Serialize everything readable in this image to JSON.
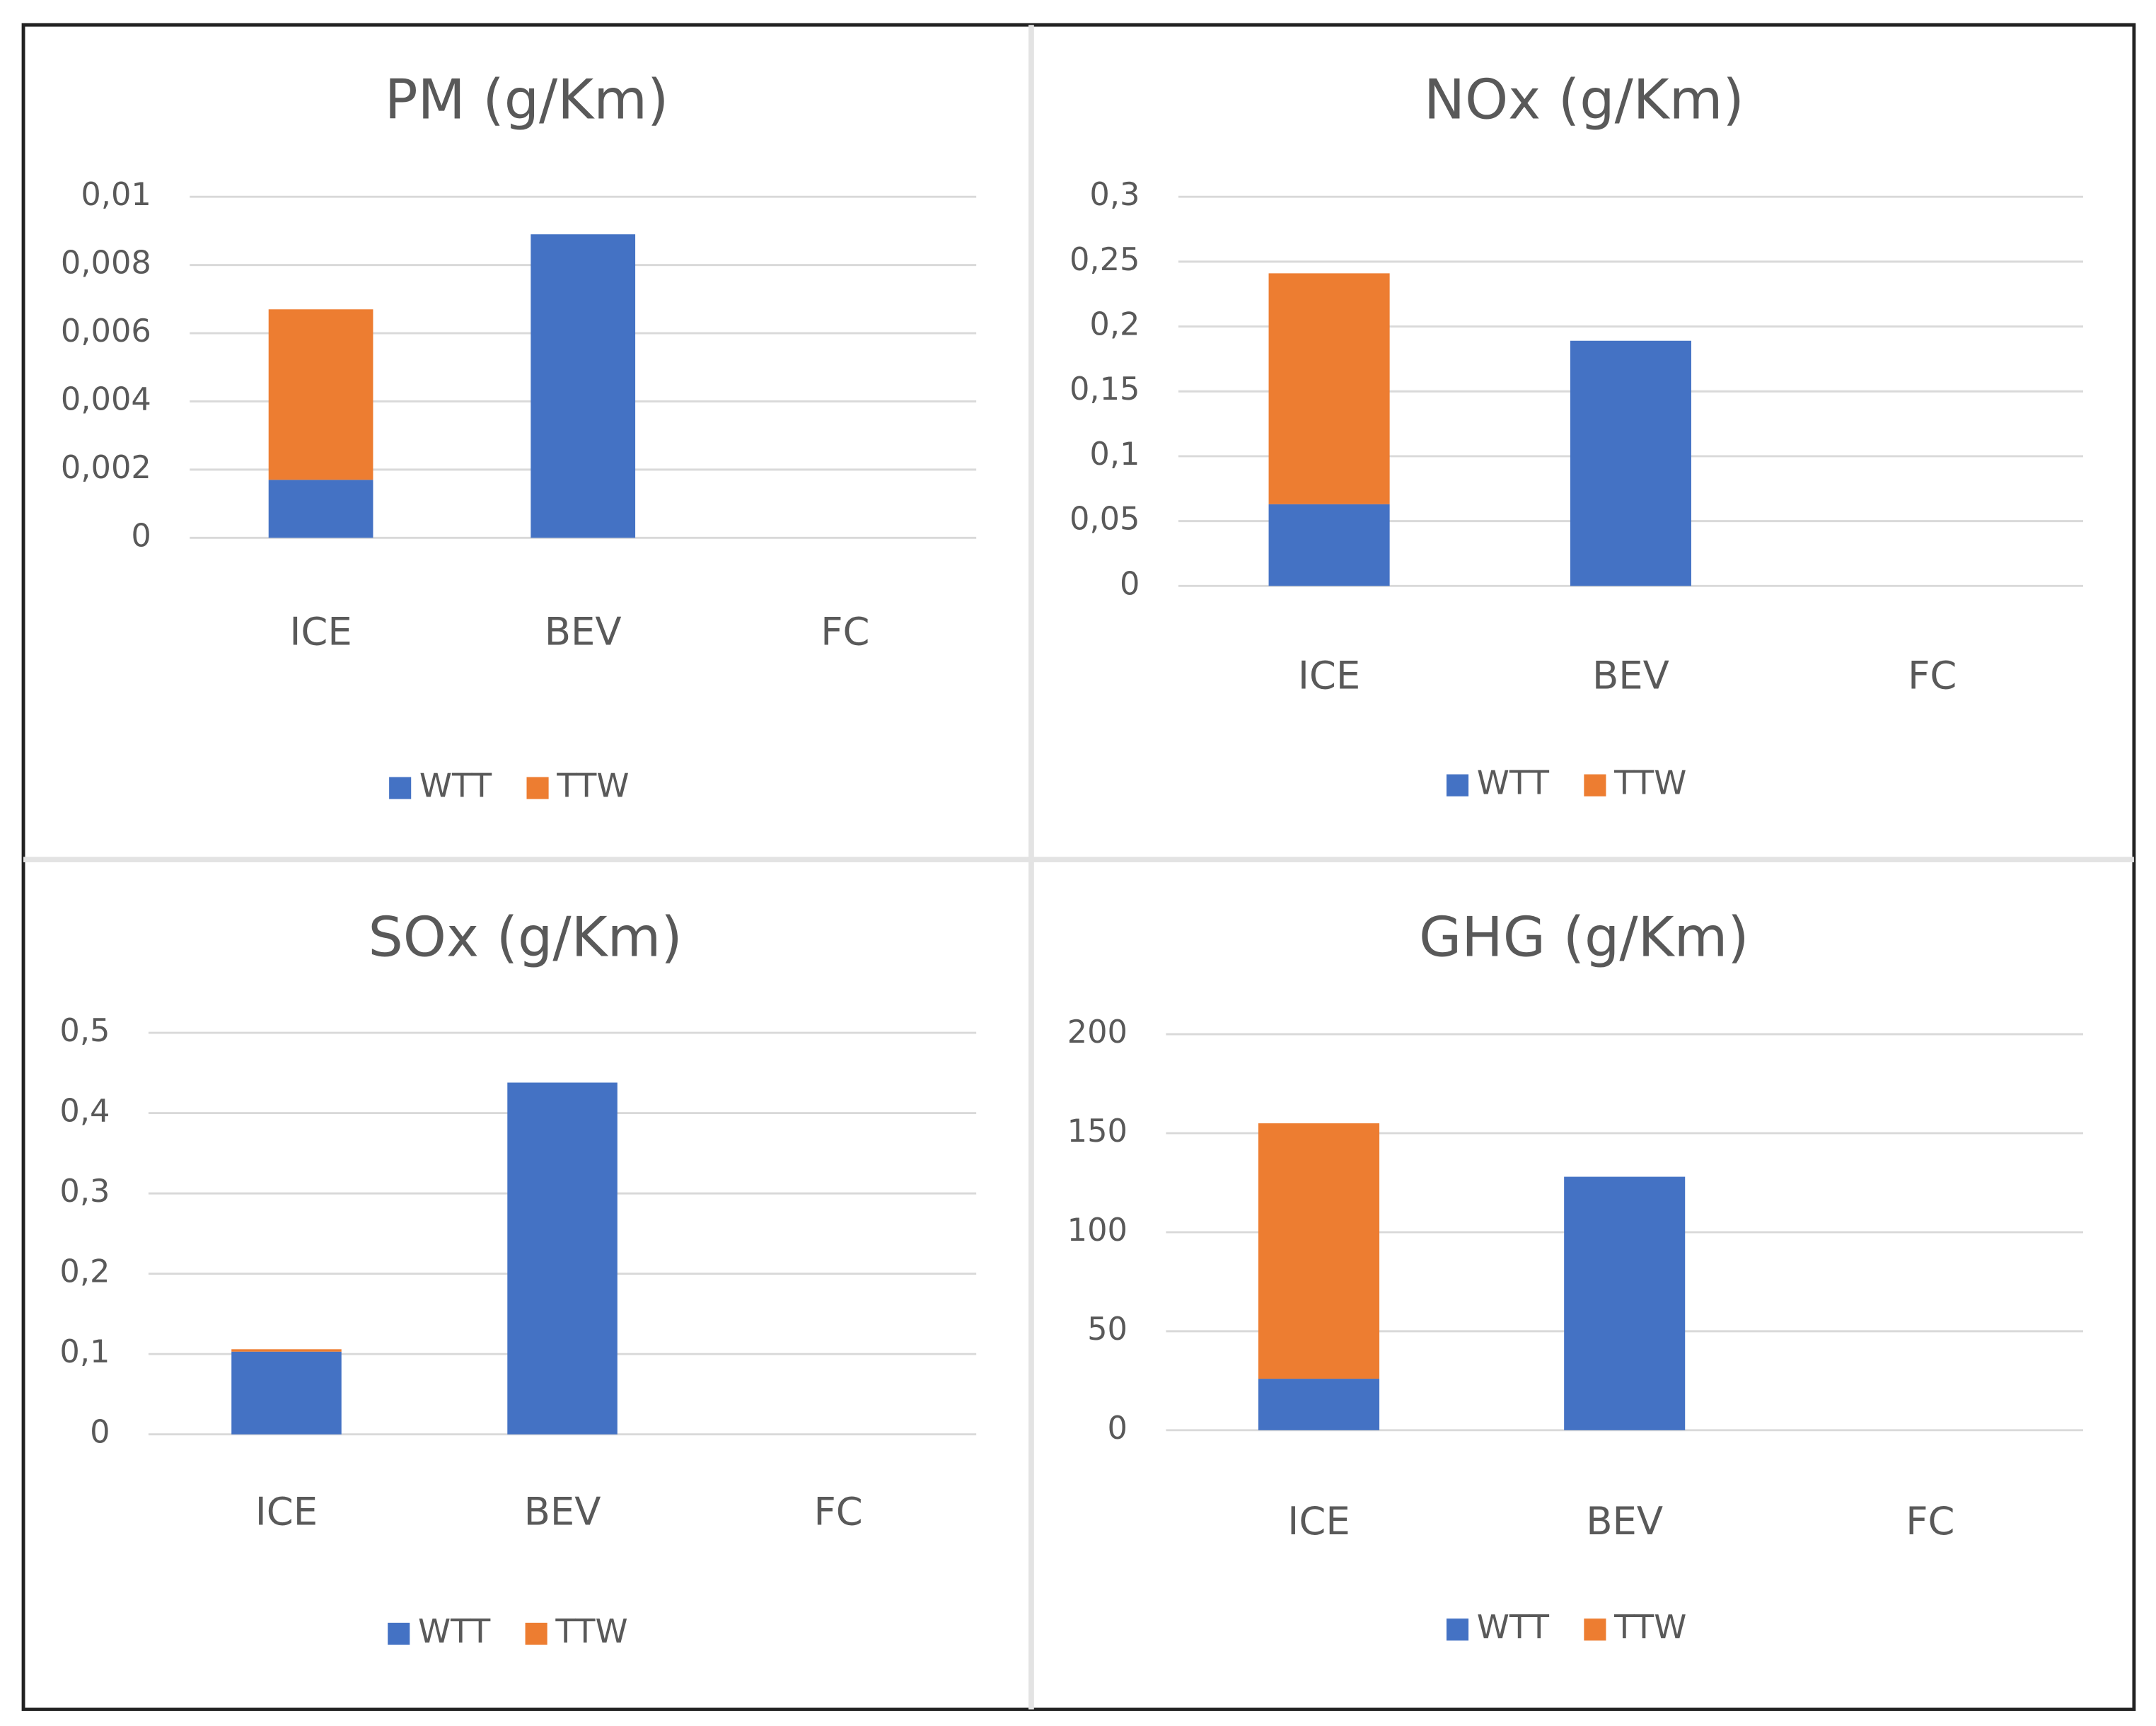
{
  "chart_data": [
    {
      "type": "stacked_bar",
      "title": "PM (g/Km)",
      "categories": [
        "ICE",
        "BEV",
        "FC"
      ],
      "series": [
        {
          "name": "WTT",
          "color": "#4472c4",
          "values": [
            0.0017,
            0.0089,
            0
          ]
        },
        {
          "name": "TTW",
          "color": "#ed7d31",
          "values": [
            0.005,
            0,
            0
          ]
        }
      ],
      "ylim": [
        0,
        0.01
      ],
      "yticks": [
        0,
        {
          "value": 0.002,
          "label": "0,002"
        },
        {
          "value": 0.004,
          "label": "0,004"
        },
        {
          "value": 0.006,
          "label": "0,006"
        },
        {
          "value": 0.008,
          "label": "0,008"
        },
        {
          "value": 0.01,
          "label": "0,01"
        }
      ],
      "grid": true,
      "legend": "bottom"
    },
    {
      "type": "stacked_bar",
      "title": "NOx (g/Km)",
      "categories": [
        "ICE",
        "BEV",
        "FC"
      ],
      "series": [
        {
          "name": "WTT",
          "color": "#4472c4",
          "values": [
            0.063,
            0.189,
            0
          ]
        },
        {
          "name": "TTW",
          "color": "#ed7d31",
          "values": [
            0.178,
            0,
            0
          ]
        }
      ],
      "ylim": [
        0,
        0.3
      ],
      "yticks": [
        0,
        {
          "value": 0.05,
          "label": "0,05"
        },
        {
          "value": 0.1,
          "label": "0,1"
        },
        {
          "value": 0.15,
          "label": "0,15"
        },
        {
          "value": 0.2,
          "label": "0,2"
        },
        {
          "value": 0.25,
          "label": "0,25"
        },
        {
          "value": 0.3,
          "label": "0,3"
        }
      ],
      "grid": true,
      "legend": "bottom"
    },
    {
      "type": "stacked_bar",
      "title": "SOx (g/Km)",
      "categories": [
        "ICE",
        "BEV",
        "FC"
      ],
      "series": [
        {
          "name": "WTT",
          "color": "#4472c4",
          "values": [
            0.103,
            0.438,
            0
          ]
        },
        {
          "name": "TTW",
          "color": "#ed7d31",
          "values": [
            0.003,
            0,
            0
          ]
        }
      ],
      "ylim": [
        0,
        0.5
      ],
      "yticks": [
        0,
        {
          "value": 0.1,
          "label": "0,1"
        },
        {
          "value": 0.2,
          "label": "0,2"
        },
        {
          "value": 0.3,
          "label": "0,3"
        },
        {
          "value": 0.4,
          "label": "0,4"
        },
        {
          "value": 0.5,
          "label": "0,5"
        }
      ],
      "grid": true,
      "legend": "bottom"
    },
    {
      "type": "stacked_bar",
      "title": "GHG (g/Km)",
      "categories": [
        "ICE",
        "BEV",
        "FC"
      ],
      "series": [
        {
          "name": "WTT",
          "color": "#4472c4",
          "values": [
            26,
            128,
            0
          ]
        },
        {
          "name": "TTW",
          "color": "#ed7d31",
          "values": [
            129,
            0,
            0
          ]
        }
      ],
      "ylim": [
        0,
        200
      ],
      "yticks": [
        0,
        50,
        100,
        150,
        200
      ],
      "grid": true,
      "legend": "bottom"
    }
  ]
}
